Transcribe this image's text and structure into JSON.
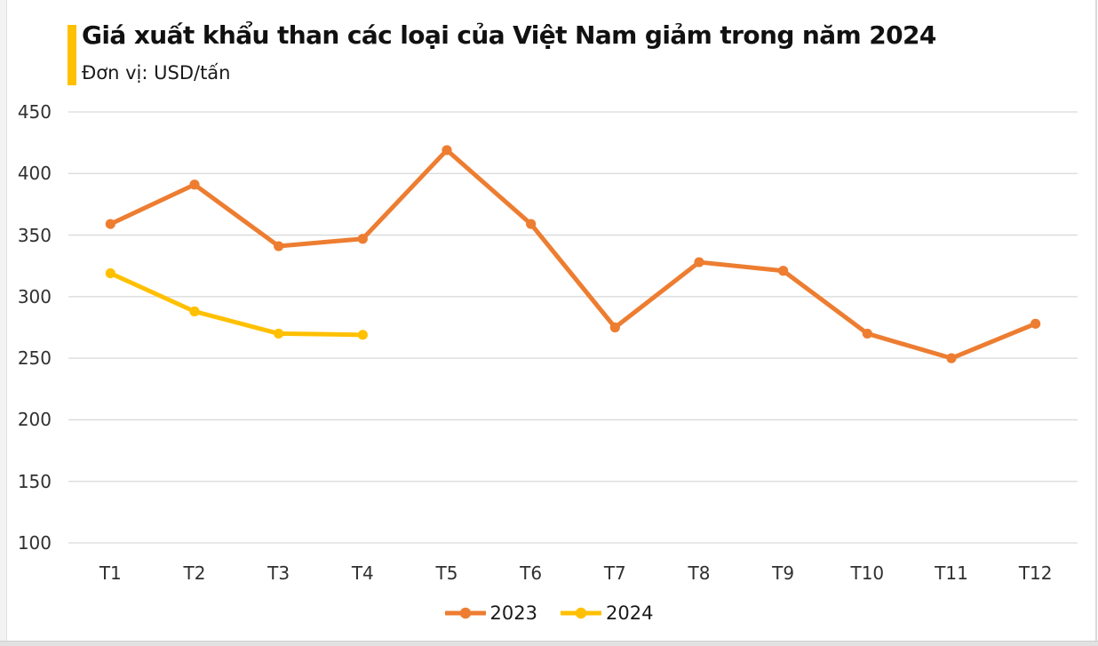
{
  "header": {
    "title": "Giá xuất khẩu than các loại của Việt Nam giảm trong năm 2024",
    "subtitle": "Đơn vị: USD/tấn"
  },
  "chart_data": {
    "type": "line",
    "title": "Giá xuất khẩu than các loại của Việt Nam giảm trong năm 2024",
    "unit": "USD/tấn",
    "categories": [
      "T1",
      "T2",
      "T3",
      "T4",
      "T5",
      "T6",
      "T7",
      "T8",
      "T9",
      "T10",
      "T11",
      "T12"
    ],
    "series": [
      {
        "name": "2023",
        "color": "#ED7D31",
        "values": [
          359,
          391,
          341,
          347,
          419,
          359,
          275,
          328,
          321,
          270,
          250,
          278
        ]
      },
      {
        "name": "2024",
        "color": "#FFC000",
        "values": [
          319,
          288,
          270,
          269
        ]
      }
    ],
    "ylim": [
      100,
      450
    ],
    "yticks": [
      450,
      400,
      350,
      300,
      250,
      200,
      150,
      100
    ],
    "grid": true,
    "legend_position": "bottom",
    "xlabel": "",
    "ylabel": ""
  },
  "colors": {
    "accent_bar": "#FFC000",
    "gridline": "#D9D9D9",
    "axis_text": "#303030",
    "title_text": "#111111"
  }
}
